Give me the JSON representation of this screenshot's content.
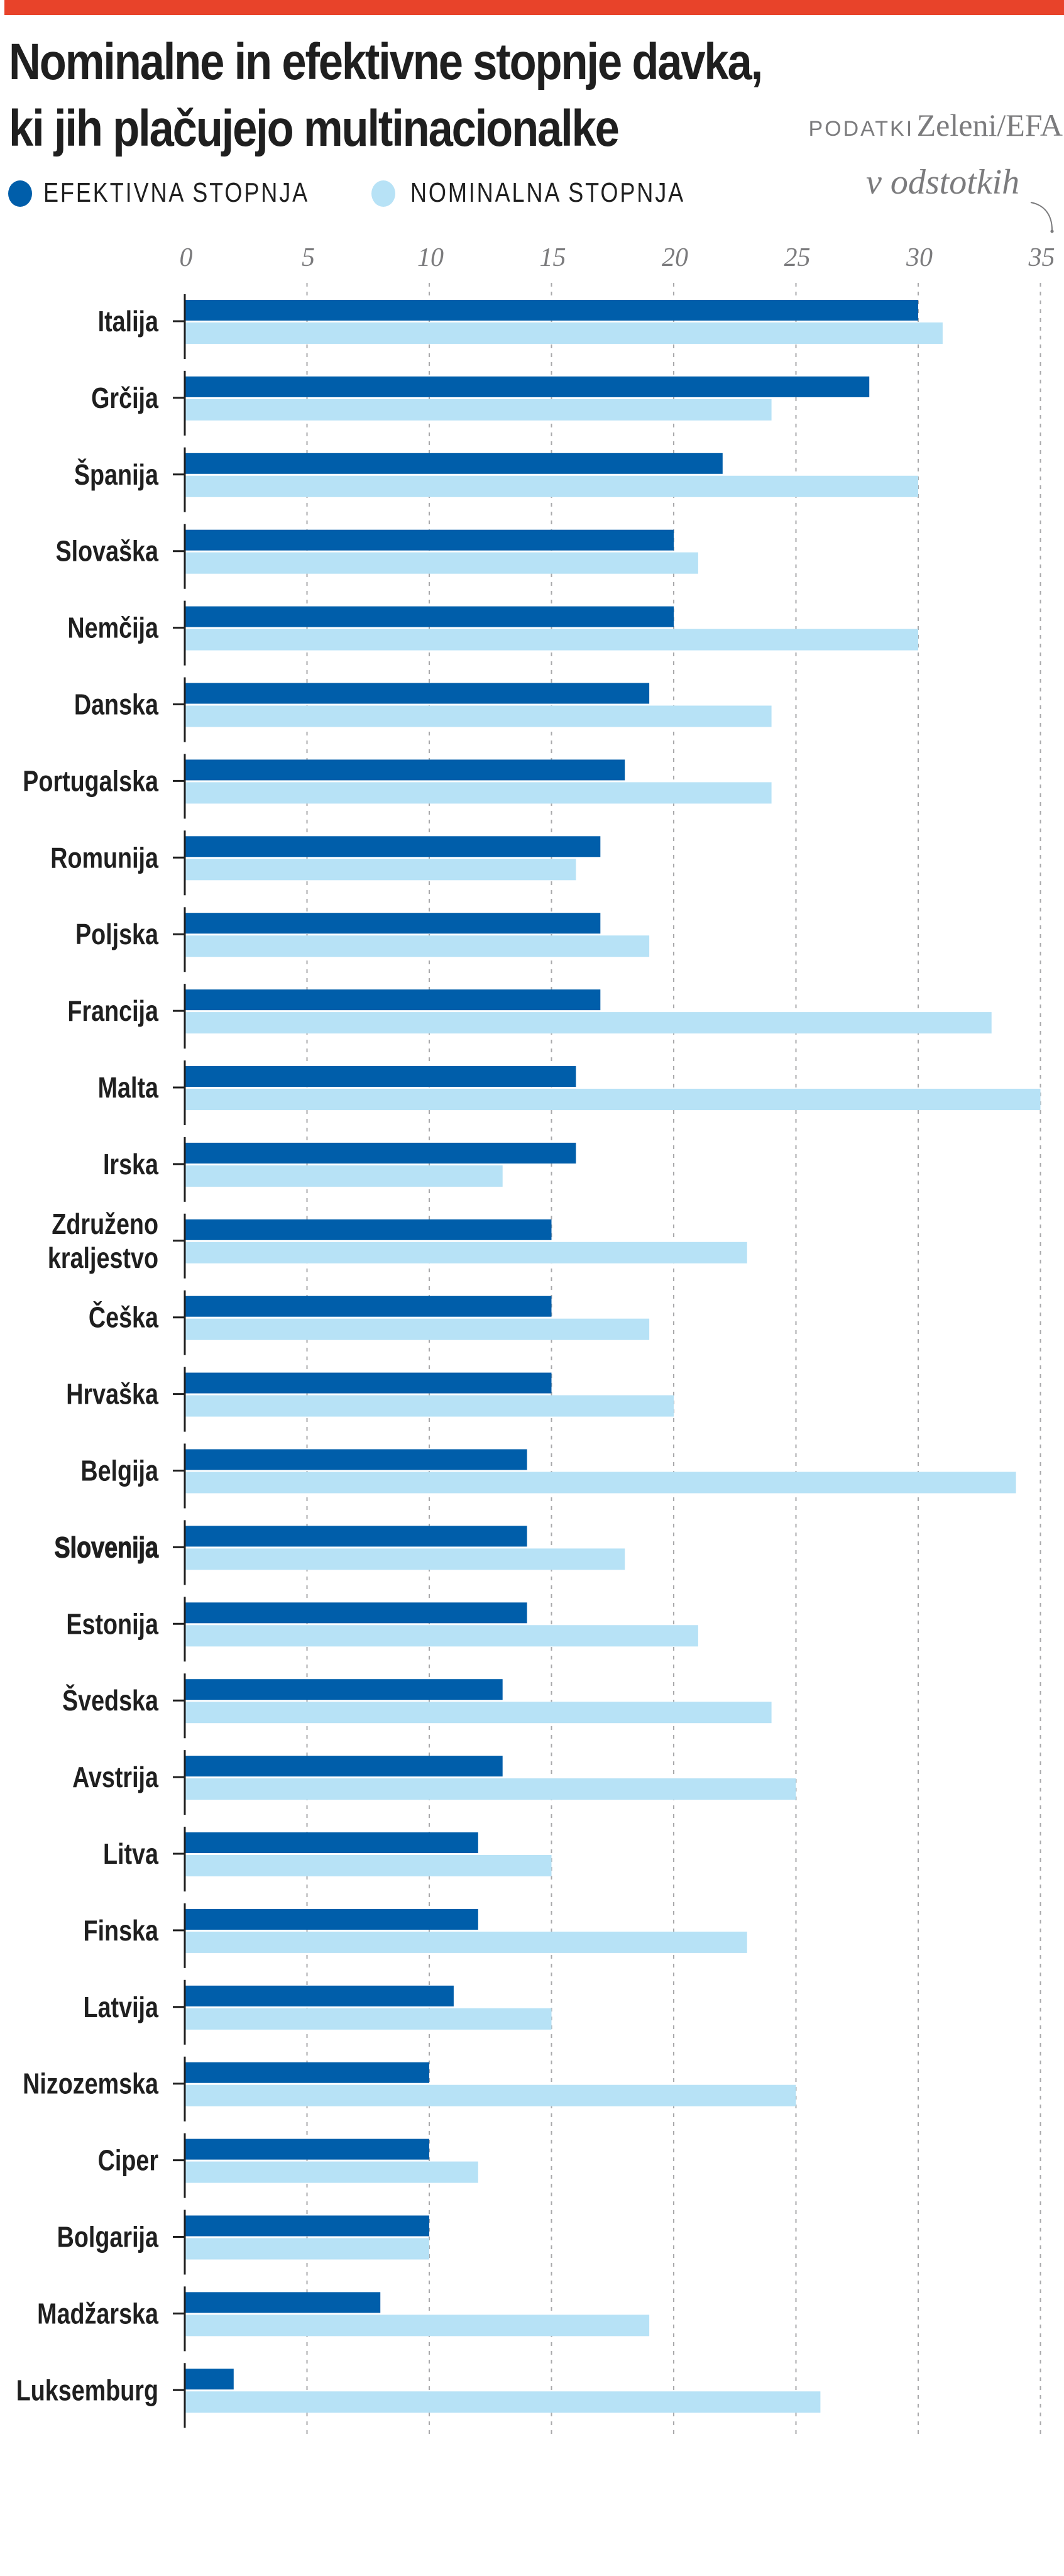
{
  "header": {
    "accent_color": "#e8432a",
    "title_lines": [
      "Nominalne in efektivne stopnje davka,",
      "ki jih plačujejo multinacionalke"
    ],
    "source_label": "PODATKI",
    "source_value": "Zeleni/EFA",
    "unit_note": "v odstotkih",
    "unit_arrow_icon": "curved-arrow-down-icon"
  },
  "legend": [
    {
      "label": "EFEKTIVNA STOPNJA",
      "color": "#005eaa"
    },
    {
      "label": "NOMINALNA STOPNJA",
      "color": "#b7e2f6"
    }
  ],
  "chart_data": {
    "type": "bar",
    "orientation": "horizontal",
    "title": "Nominalne in efektivne stopnje davka, ki jih plačujejo multinacionalke",
    "xlabel": "v odstotkih",
    "ylabel": "",
    "xlim": [
      0,
      35
    ],
    "xticks": [
      0,
      5,
      10,
      15,
      20,
      25,
      30,
      35
    ],
    "grid": "vertical-dashed",
    "legend_position": "top-left",
    "highlight_category": "Slovenija",
    "categories": [
      "Italija",
      "Grčija",
      "Španija",
      "Slovaška",
      "Nemčija",
      "Danska",
      "Portugalska",
      "Romunija",
      "Poljska",
      "Francija",
      "Malta",
      "Irska",
      "Združeno kraljestvo",
      "Češka",
      "Hrvaška",
      "Belgija",
      "Slovenija",
      "Estonija",
      "Švedska",
      "Avstrija",
      "Litva",
      "Finska",
      "Latvija",
      "Nizozemska",
      "Ciper",
      "Bolgarija",
      "Madžarska",
      "Luksemburg"
    ],
    "category_lines": {
      "Združeno kraljestvo": [
        "Združeno",
        "kraljestvo"
      ]
    },
    "series": [
      {
        "name": "EFEKTIVNA STOPNJA",
        "color": "#005eaa",
        "values": [
          30,
          28,
          22,
          20,
          20,
          19,
          18,
          17,
          17,
          17,
          16,
          16,
          15,
          15,
          15,
          14,
          14,
          14,
          13,
          13,
          12,
          12,
          11,
          10,
          10,
          10,
          8,
          2
        ]
      },
      {
        "name": "NOMINALNA STOPNJA",
        "color": "#b7e2f6",
        "values": [
          31,
          24,
          30,
          21,
          30,
          24,
          24,
          16,
          19,
          33,
          35,
          13,
          23,
          19,
          20,
          34,
          18,
          21,
          24,
          25,
          15,
          23,
          15,
          25,
          12,
          10,
          19,
          26
        ]
      }
    ]
  }
}
